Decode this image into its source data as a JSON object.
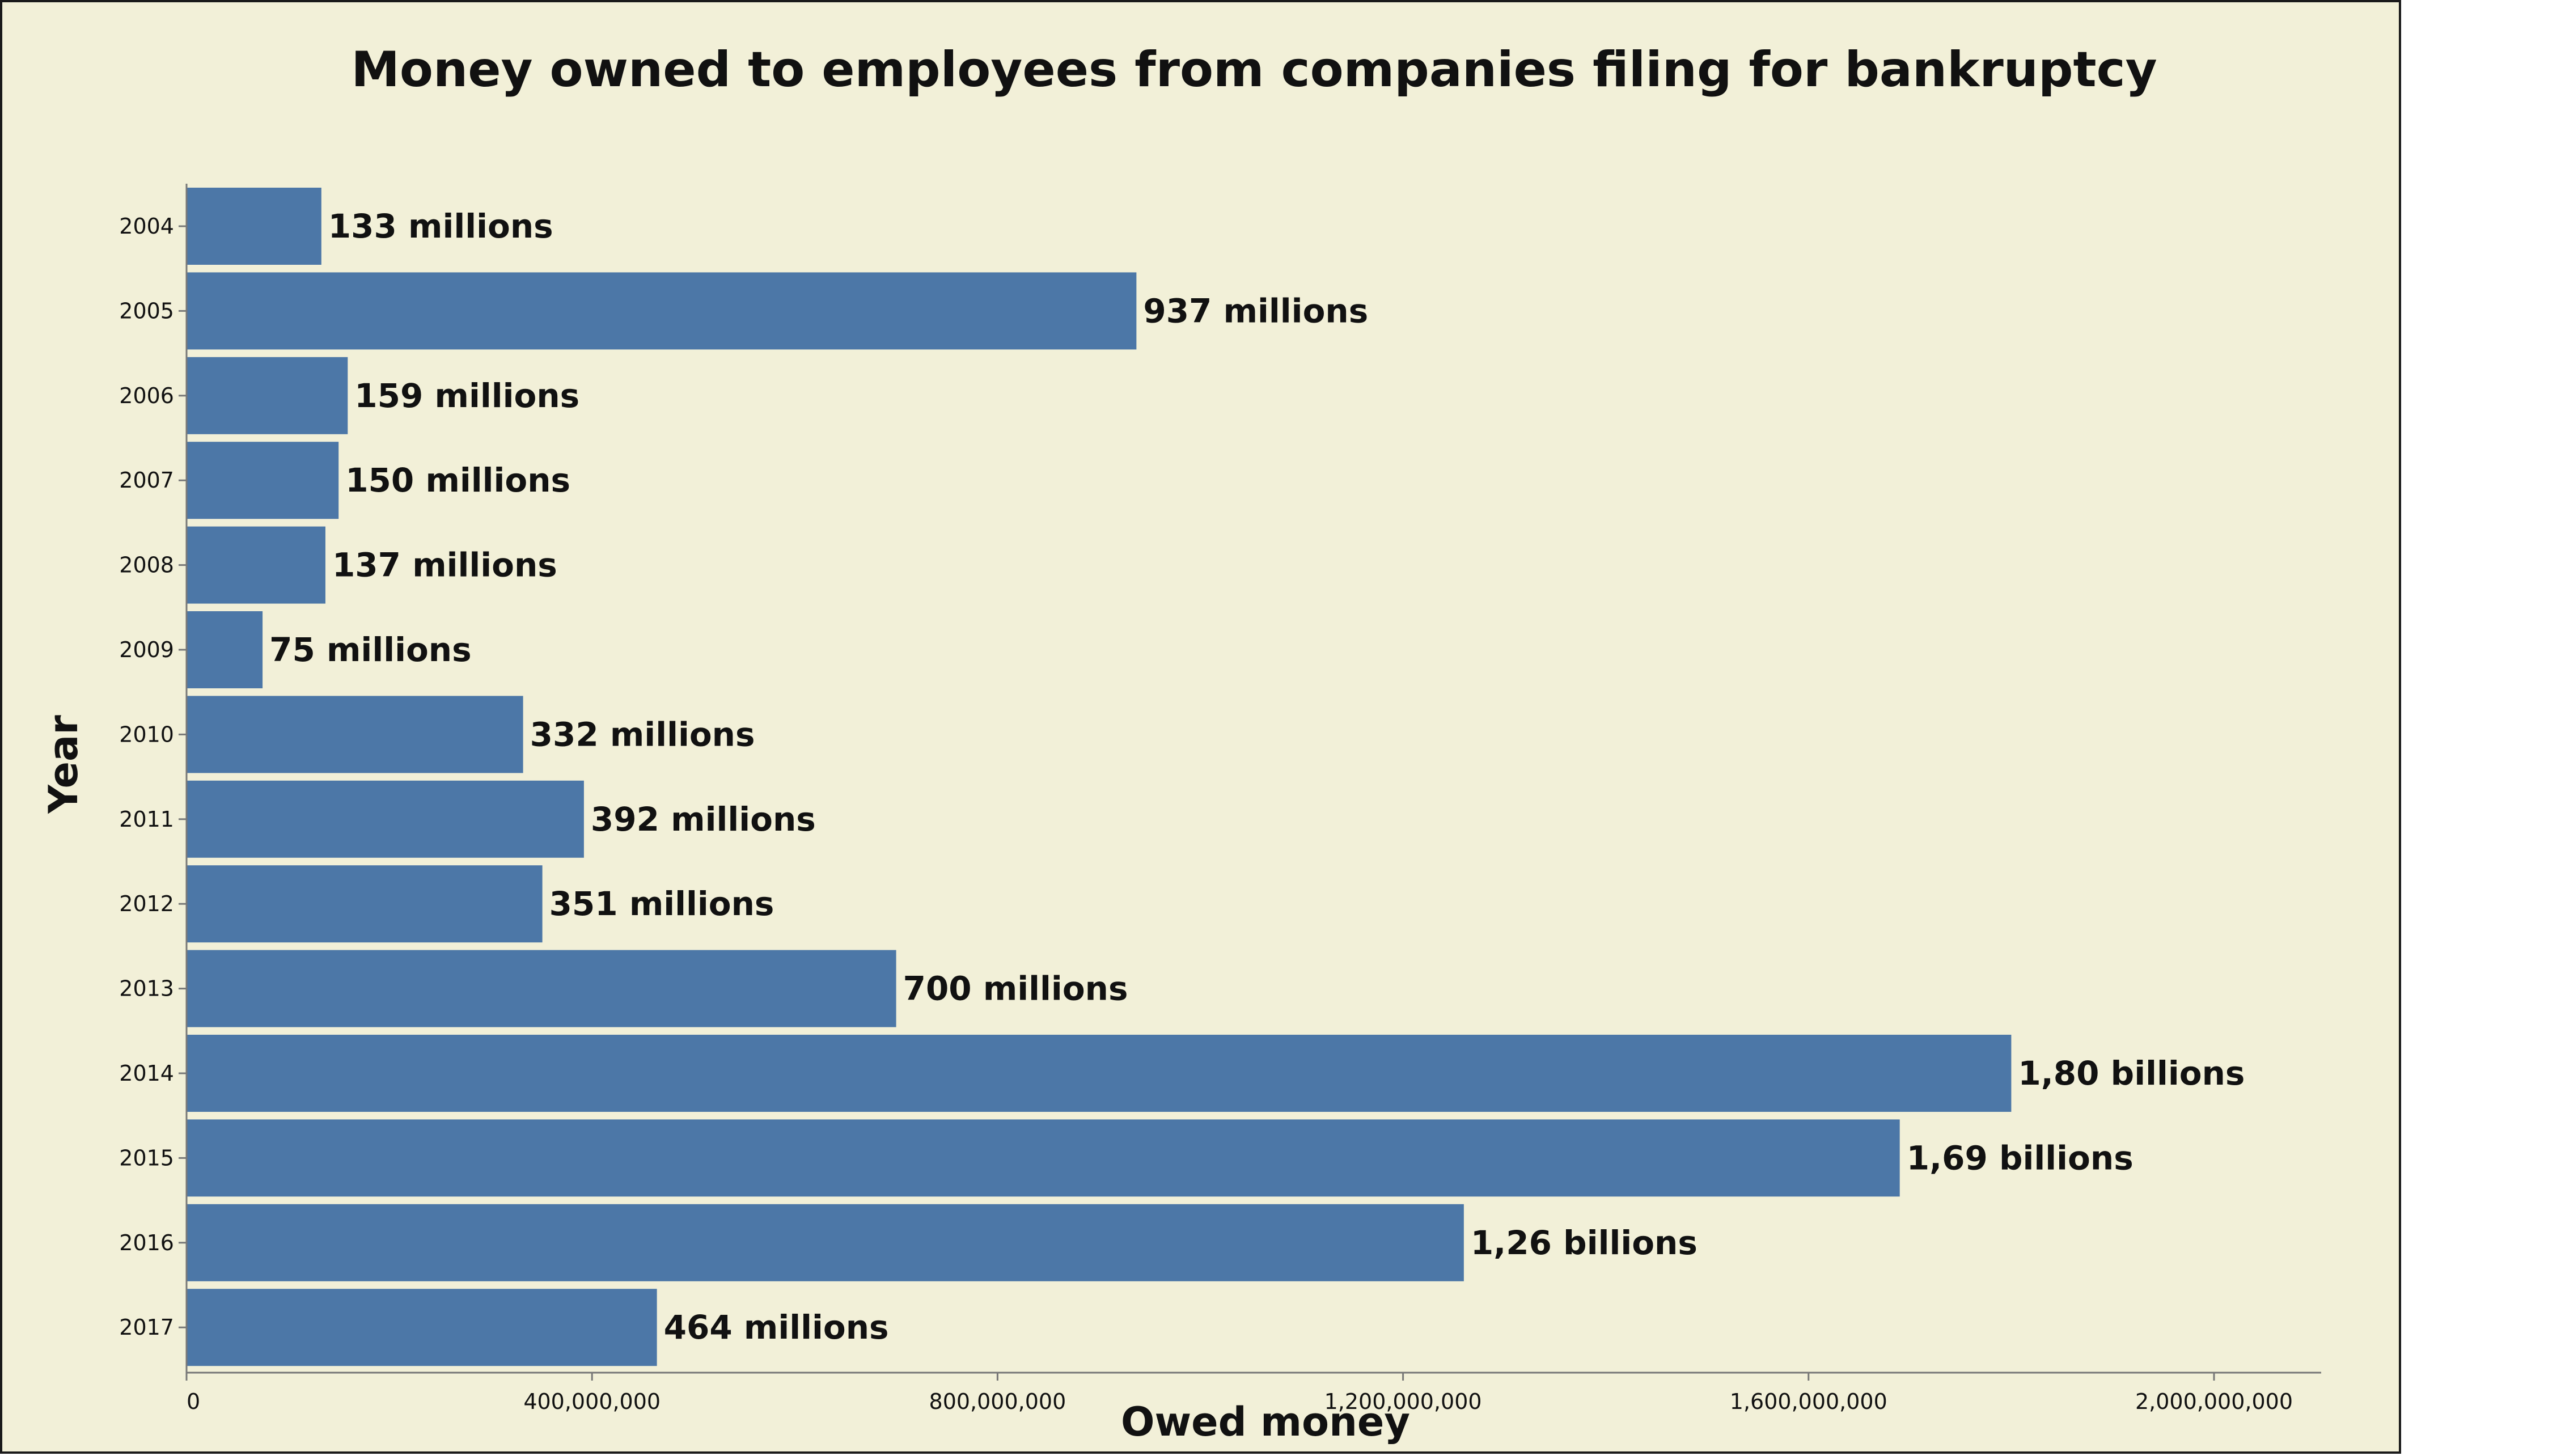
{
  "chart_data": {
    "type": "bar",
    "orientation": "horizontal",
    "title": "Money owned to employees from companies filing for bankruptcy",
    "xlabel": "Owed money",
    "ylabel": "Year",
    "categories": [
      "2004",
      "2005",
      "2006",
      "2007",
      "2008",
      "2009",
      "2010",
      "2011",
      "2012",
      "2013",
      "2014",
      "2015",
      "2016",
      "2017"
    ],
    "values": [
      133000000,
      937000000,
      159000000,
      150000000,
      137000000,
      75000000,
      332000000,
      392000000,
      351000000,
      700000000,
      1800000000,
      1690000000,
      1260000000,
      464000000
    ],
    "data_labels": [
      "133 millions",
      "937 millions",
      "159 millions",
      "150 millions",
      "137 millions",
      "75 millions",
      "332 millions",
      "392 millions",
      "351 millions",
      "700 millions",
      "1,80 billions",
      "1,69 billions",
      "1,26 billions",
      "464 millions"
    ],
    "xlim": [
      0,
      2000000000
    ],
    "x_ticks": [
      0,
      400000000,
      800000000,
      1200000000,
      1600000000,
      2000000000
    ],
    "x_tick_labels": [
      "0",
      "400,000,000",
      "800,000,000",
      "1,200,000,000",
      "1,600,000,000",
      "2,000,000,000"
    ],
    "grid": false,
    "legend": "none",
    "colors": {
      "bar": "#4c77a7",
      "background": "#f2f0d8",
      "border": "#1a1a1a"
    }
  }
}
